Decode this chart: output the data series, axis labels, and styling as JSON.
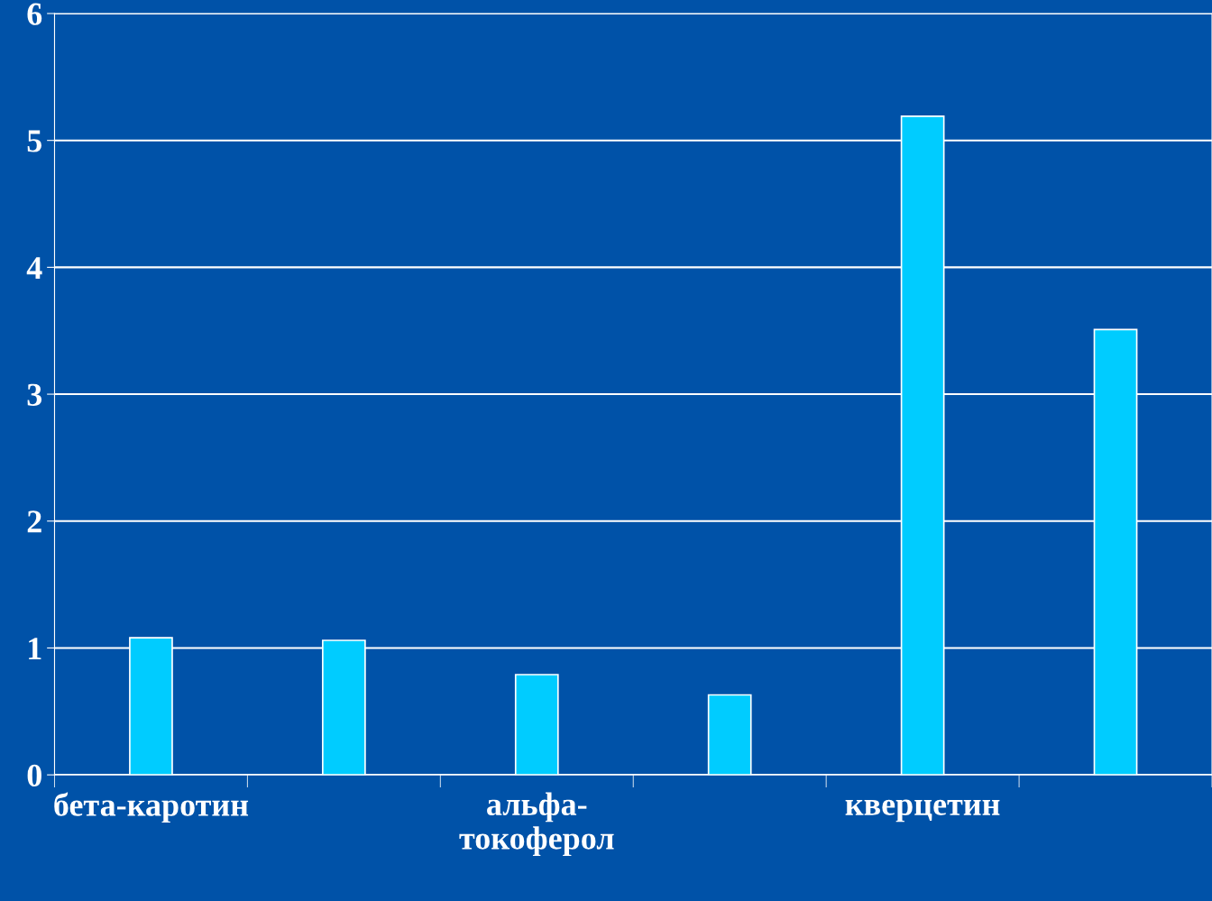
{
  "chart_data": {
    "type": "bar",
    "categories": [
      "бета-каротин",
      null,
      "альфа-\nтокоферол",
      null,
      "кверцетин",
      null
    ],
    "values": [
      1.08,
      1.06,
      0.79,
      0.63,
      5.19,
      3.51
    ],
    "color": "#00ccff",
    "ylim": [
      0,
      6
    ],
    "yticks": [
      0,
      1,
      2,
      3,
      4,
      5,
      6
    ],
    "grid": "y",
    "legend": false
  }
}
